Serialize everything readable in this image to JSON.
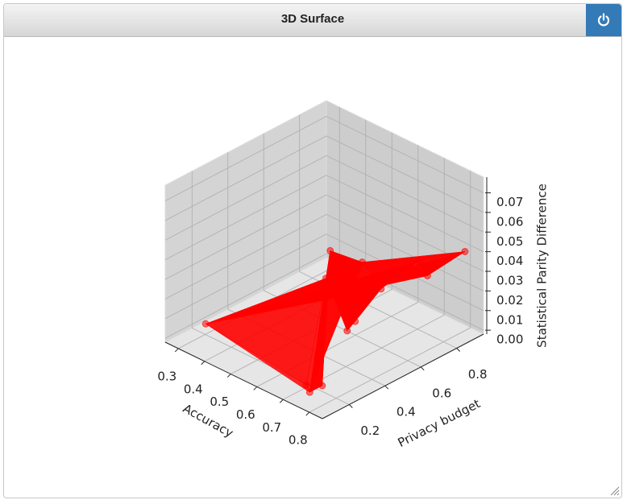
{
  "header": {
    "title": "3D Surface"
  },
  "chart_data": {
    "type": "trisurf3d",
    "x_label": "Accuracy",
    "y_label": "Privacy budget",
    "z_label": "Statistical Parity Difference",
    "x": [
      0.35,
      0.74,
      0.74,
      0.75,
      0.79,
      0.8,
      0.8,
      0.78,
      0.77,
      0.76,
      0.72,
      0.82,
      0.72
    ],
    "y": [
      0.13,
      0.14,
      0.21,
      0.24,
      0.36,
      0.66,
      0.71,
      0.48,
      0.35,
      0.32,
      0.26,
      0.89,
      0.15
    ],
    "z": [
      0.01,
      0,
      0,
      0.068,
      0.059,
      0.046,
      0.036,
      0.039,
      0.028,
      0.024,
      0.051,
      0.041,
      0.002
    ],
    "color": "#ff0000",
    "xlim": [
      0.25,
      0.85
    ],
    "ylim": [
      0.05,
      0.95
    ],
    "zlim": [
      -0.002,
      0.078
    ],
    "xticks": [
      0.3,
      0.4,
      0.5,
      0.6,
      0.7,
      0.8
    ],
    "yticks": [
      0.2,
      0.4,
      0.6,
      0.8
    ],
    "zticks": [
      {
        "value": 0,
        "label": "0.00"
      },
      0.01,
      0.02,
      0.03,
      0.04,
      0.05,
      0.06,
      0.07
    ]
  }
}
